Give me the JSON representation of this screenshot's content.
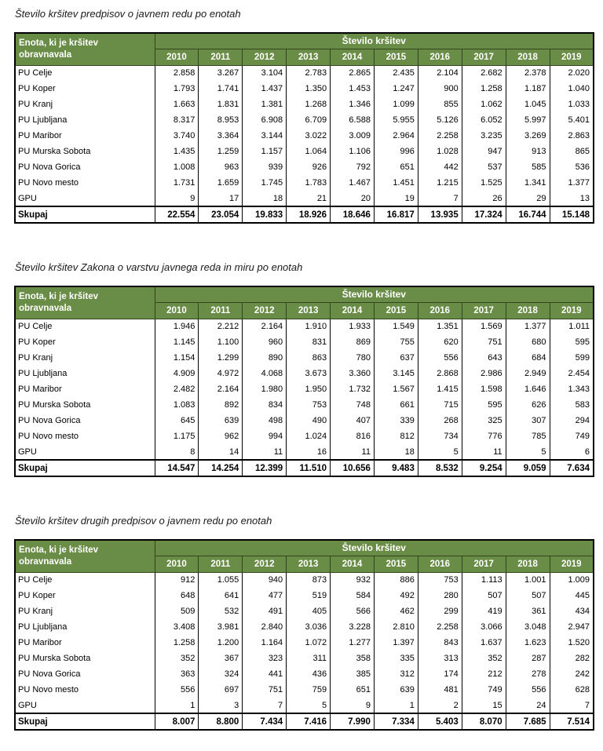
{
  "colors": {
    "header_bg": "#698c46",
    "header_border": "#32461e",
    "header_text": "#ffffff",
    "table_border": "#000000",
    "body_text": "#000000",
    "title_text": "#1a1a1a",
    "page_bg": "#ffffff"
  },
  "shared": {
    "row_header_label": "Enota, ki je kršitev obravnavala",
    "span_header": "Število kršitev",
    "years": [
      "2010",
      "2011",
      "2012",
      "2013",
      "2014",
      "2015",
      "2016",
      "2017",
      "2018",
      "2019"
    ],
    "total_label": "Skupaj"
  },
  "tables": [
    {
      "title": "Število kršitev predpisov o javnem redu po enotah",
      "rows": [
        {
          "label": "PU Celje",
          "values": [
            "2.858",
            "3.267",
            "3.104",
            "2.783",
            "2.865",
            "2.435",
            "2.104",
            "2.682",
            "2.378",
            "2.020"
          ]
        },
        {
          "label": "PU Koper",
          "values": [
            "1.793",
            "1.741",
            "1.437",
            "1.350",
            "1.453",
            "1.247",
            "900",
            "1.258",
            "1.187",
            "1.040"
          ]
        },
        {
          "label": "PU Kranj",
          "values": [
            "1.663",
            "1.831",
            "1.381",
            "1.268",
            "1.346",
            "1.099",
            "855",
            "1.062",
            "1.045",
            "1.033"
          ]
        },
        {
          "label": "PU Ljubljana",
          "values": [
            "8.317",
            "8.953",
            "6.908",
            "6.709",
            "6.588",
            "5.955",
            "5.126",
            "6.052",
            "5.997",
            "5.401"
          ]
        },
        {
          "label": "PU Maribor",
          "values": [
            "3.740",
            "3.364",
            "3.144",
            "3.022",
            "3.009",
            "2.964",
            "2.258",
            "3.235",
            "3.269",
            "2.863"
          ]
        },
        {
          "label": "PU Murska Sobota",
          "values": [
            "1.435",
            "1.259",
            "1.157",
            "1.064",
            "1.106",
            "996",
            "1.028",
            "947",
            "913",
            "865"
          ]
        },
        {
          "label": "PU Nova Gorica",
          "values": [
            "1.008",
            "963",
            "939",
            "926",
            "792",
            "651",
            "442",
            "537",
            "585",
            "536"
          ]
        },
        {
          "label": "PU Novo mesto",
          "values": [
            "1.731",
            "1.659",
            "1.745",
            "1.783",
            "1.467",
            "1.451",
            "1.215",
            "1.525",
            "1.341",
            "1.377"
          ]
        },
        {
          "label": "GPU",
          "values": [
            "9",
            "17",
            "18",
            "21",
            "20",
            "19",
            "7",
            "26",
            "29",
            "13"
          ]
        }
      ],
      "total": [
        "22.554",
        "23.054",
        "19.833",
        "18.926",
        "18.646",
        "16.817",
        "13.935",
        "17.324",
        "16.744",
        "15.148"
      ]
    },
    {
      "title": "Število kršitev Zakona o varstvu javnega reda in miru po enotah",
      "rows": [
        {
          "label": "PU Celje",
          "values": [
            "1.946",
            "2.212",
            "2.164",
            "1.910",
            "1.933",
            "1.549",
            "1.351",
            "1.569",
            "1.377",
            "1.011"
          ]
        },
        {
          "label": "PU Koper",
          "values": [
            "1.145",
            "1.100",
            "960",
            "831",
            "869",
            "755",
            "620",
            "751",
            "680",
            "595"
          ]
        },
        {
          "label": "PU Kranj",
          "values": [
            "1.154",
            "1.299",
            "890",
            "863",
            "780",
            "637",
            "556",
            "643",
            "684",
            "599"
          ]
        },
        {
          "label": "PU Ljubljana",
          "values": [
            "4.909",
            "4.972",
            "4.068",
            "3.673",
            "3.360",
            "3.145",
            "2.868",
            "2.986",
            "2.949",
            "2.454"
          ]
        },
        {
          "label": "PU Maribor",
          "values": [
            "2.482",
            "2.164",
            "1.980",
            "1.950",
            "1.732",
            "1.567",
            "1.415",
            "1.598",
            "1.646",
            "1.343"
          ]
        },
        {
          "label": "PU Murska Sobota",
          "values": [
            "1.083",
            "892",
            "834",
            "753",
            "748",
            "661",
            "715",
            "595",
            "626",
            "583"
          ]
        },
        {
          "label": "PU Nova Gorica",
          "values": [
            "645",
            "639",
            "498",
            "490",
            "407",
            "339",
            "268",
            "325",
            "307",
            "294"
          ]
        },
        {
          "label": "PU Novo mesto",
          "values": [
            "1.175",
            "962",
            "994",
            "1.024",
            "816",
            "812",
            "734",
            "776",
            "785",
            "749"
          ]
        },
        {
          "label": "GPU",
          "values": [
            "8",
            "14",
            "11",
            "16",
            "11",
            "18",
            "5",
            "11",
            "5",
            "6"
          ]
        }
      ],
      "total": [
        "14.547",
        "14.254",
        "12.399",
        "11.510",
        "10.656",
        "9.483",
        "8.532",
        "9.254",
        "9.059",
        "7.634"
      ]
    },
    {
      "title": "Število kršitev drugih predpisov o javnem redu po enotah",
      "rows": [
        {
          "label": "PU Celje",
          "values": [
            "912",
            "1.055",
            "940",
            "873",
            "932",
            "886",
            "753",
            "1.113",
            "1.001",
            "1.009"
          ]
        },
        {
          "label": "PU Koper",
          "values": [
            "648",
            "641",
            "477",
            "519",
            "584",
            "492",
            "280",
            "507",
            "507",
            "445"
          ]
        },
        {
          "label": "PU Kranj",
          "values": [
            "509",
            "532",
            "491",
            "405",
            "566",
            "462",
            "299",
            "419",
            "361",
            "434"
          ]
        },
        {
          "label": "PU Ljubljana",
          "values": [
            "3.408",
            "3.981",
            "2.840",
            "3.036",
            "3.228",
            "2.810",
            "2.258",
            "3.066",
            "3.048",
            "2.947"
          ]
        },
        {
          "label": "PU Maribor",
          "values": [
            "1.258",
            "1.200",
            "1.164",
            "1.072",
            "1.277",
            "1.397",
            "843",
            "1.637",
            "1.623",
            "1.520"
          ]
        },
        {
          "label": "PU Murska Sobota",
          "values": [
            "352",
            "367",
            "323",
            "311",
            "358",
            "335",
            "313",
            "352",
            "287",
            "282"
          ]
        },
        {
          "label": "PU Nova Gorica",
          "values": [
            "363",
            "324",
            "441",
            "436",
            "385",
            "312",
            "174",
            "212",
            "278",
            "242"
          ]
        },
        {
          "label": "PU Novo mesto",
          "values": [
            "556",
            "697",
            "751",
            "759",
            "651",
            "639",
            "481",
            "749",
            "556",
            "628"
          ]
        },
        {
          "label": "GPU",
          "values": [
            "1",
            "3",
            "7",
            "5",
            "9",
            "1",
            "2",
            "15",
            "24",
            "7"
          ]
        }
      ],
      "total": [
        "8.007",
        "8.800",
        "7.434",
        "7.416",
        "7.990",
        "7.334",
        "5.403",
        "8.070",
        "7.685",
        "7.514"
      ]
    }
  ]
}
